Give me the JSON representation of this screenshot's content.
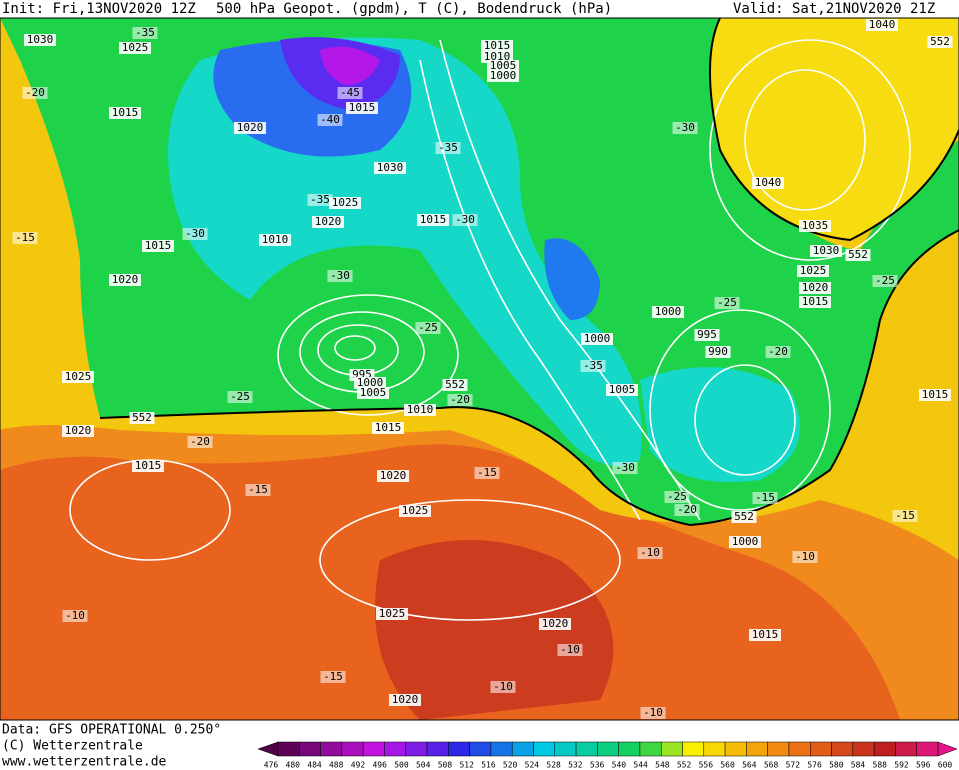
{
  "header": {
    "init": "Init: Fri,13NOV2020 12Z",
    "title": "500 hPa Geopot. (gpdm), T (C), Bodendruck (hPa)",
    "valid": "Valid: Sat,21NOV2020 21Z"
  },
  "footer": {
    "source": "Data: GFS OPERATIONAL 0.250°",
    "copyright": "(C) Wetterzentrale",
    "url": "www.wetterzentrale.de"
  },
  "legend": {
    "levels": [
      476,
      480,
      484,
      488,
      492,
      496,
      500,
      504,
      508,
      512,
      516,
      520,
      524,
      528,
      532,
      536,
      540,
      544,
      548,
      552,
      556,
      560,
      564,
      568,
      572,
      576,
      580,
      584,
      588,
      592,
      596,
      600
    ]
  },
  "map": {
    "labels": [
      1030,
      1025,
      -35,
      -20,
      1015,
      1020,
      -40,
      -45,
      1015,
      1030,
      -35,
      -35,
      1025,
      1020,
      1015,
      -30,
      -30,
      1010,
      1015,
      -15,
      1020,
      -30,
      -25,
      1025,
      995,
      1000,
      1005,
      552,
      -20,
      -25,
      1010,
      552,
      1015,
      1020,
      -20,
      1015,
      -15,
      1020,
      -15,
      1025,
      1015,
      1010,
      1005,
      1000,
      -30,
      1040,
      552,
      1040,
      1035,
      1030,
      552,
      1025,
      1020,
      1015,
      -25,
      1000,
      -25,
      995,
      990,
      -20,
      1000,
      -35,
      1005,
      1015,
      -30,
      -25,
      -20,
      -15,
      552,
      -15,
      1000,
      -10,
      -10,
      -10,
      1025,
      1020,
      -10,
      1015,
      -15,
      -10,
      1020,
      -10
    ]
  }
}
